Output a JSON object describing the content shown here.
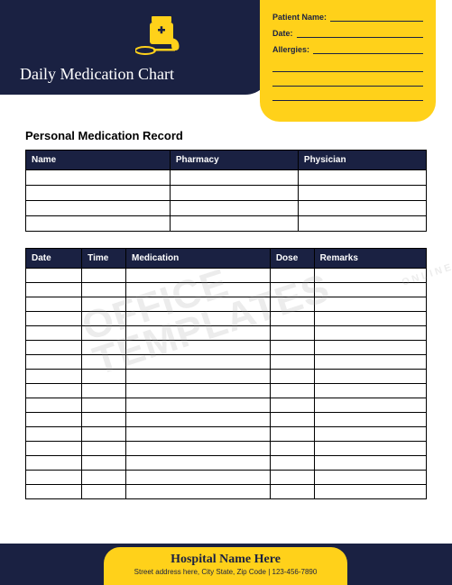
{
  "colors": {
    "navy": "#1a2142",
    "yellow": "#ffd11a",
    "white": "#ffffff",
    "black": "#000000"
  },
  "header": {
    "title": "Daily Medication Chart",
    "info_labels": {
      "patient": "Patient Name:",
      "date": "Date:",
      "allergies": "Allergies:"
    },
    "extra_lines": 3
  },
  "section_title": "Personal Medication Record",
  "table1": {
    "columns": [
      "Name",
      "Pharmacy",
      "Physician"
    ],
    "col_widths": [
      "36%",
      "32%",
      "32%"
    ],
    "rows": 4
  },
  "table2": {
    "columns": [
      "Date",
      "Time",
      "Medication",
      "Dose",
      "Remarks"
    ],
    "col_widths": [
      "14%",
      "11%",
      "36%",
      "11%",
      "28%"
    ],
    "rows": 16
  },
  "watermark": {
    "main": "OFFICE TEMPLATES",
    "sub": "ONLINE"
  },
  "footer": {
    "title": "Hospital Name Here",
    "sub": "Street address here, City State, Zip Code | 123-456-7890"
  }
}
